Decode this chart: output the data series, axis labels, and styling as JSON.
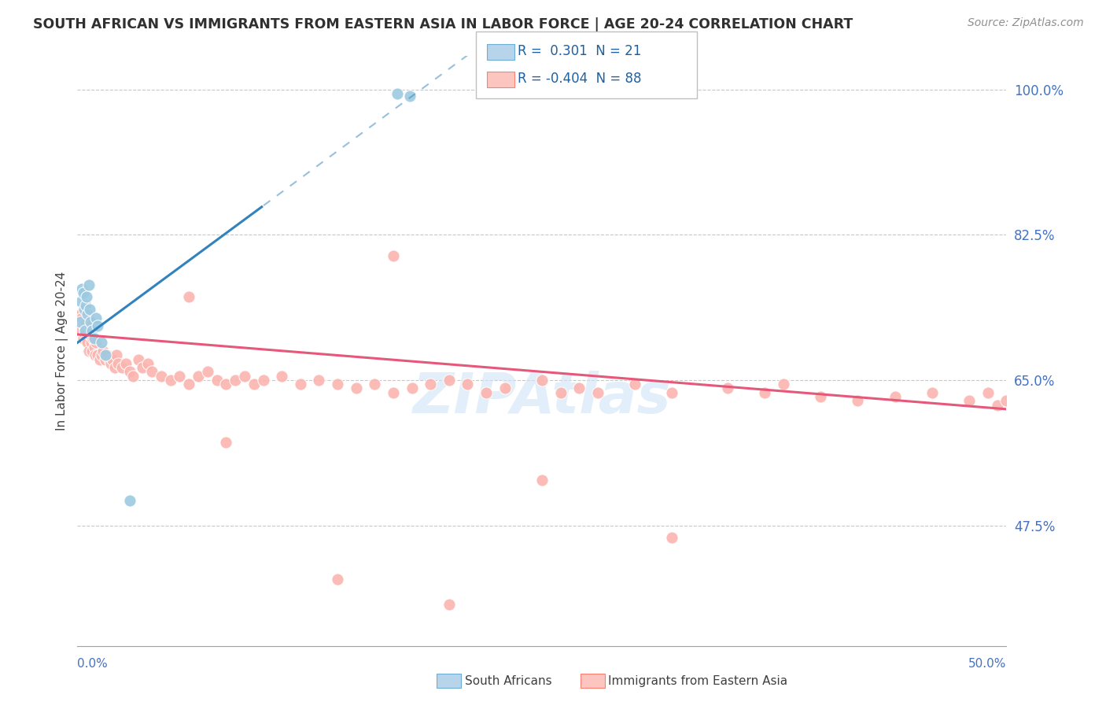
{
  "title": "SOUTH AFRICAN VS IMMIGRANTS FROM EASTERN ASIA IN LABOR FORCE | AGE 20-24 CORRELATION CHART",
  "source": "Source: ZipAtlas.com",
  "ylabel": "In Labor Force | Age 20-24",
  "ytick_vals": [
    47.5,
    65.0,
    82.5,
    100.0
  ],
  "ytick_labels": [
    "47.5%",
    "65.0%",
    "82.5%",
    "100.0%"
  ],
  "xmin": 0.0,
  "xmax": 50.0,
  "ymin": 33.0,
  "ymax": 104.0,
  "r_blue": 0.301,
  "n_blue": 21,
  "r_pink": -0.404,
  "n_pink": 88,
  "blue_scatter_color": "#9ecae1",
  "pink_scatter_color": "#fbb4ae",
  "blue_line_color": "#3182bd",
  "pink_line_color": "#e5587a",
  "legend_blue_fill": "#b8d4ea",
  "legend_pink_fill": "#fcc5c0",
  "blue_line_x0": 0.0,
  "blue_line_y0": 69.5,
  "blue_line_x1": 18.5,
  "blue_line_y1": 100.0,
  "blue_solid_xmax": 10.0,
  "pink_line_x0": 0.0,
  "pink_line_y0": 70.5,
  "pink_line_x1": 50.0,
  "pink_line_y1": 61.5,
  "blue_x": [
    0.15,
    0.2,
    0.25,
    0.3,
    0.35,
    0.4,
    0.45,
    0.5,
    0.55,
    0.6,
    0.65,
    0.7,
    0.8,
    0.9,
    1.0,
    1.1,
    1.3,
    1.5,
    2.8,
    17.2,
    17.9
  ],
  "blue_y": [
    72.0,
    74.5,
    76.0,
    75.5,
    73.5,
    71.0,
    74.0,
    75.0,
    73.0,
    76.5,
    73.5,
    72.0,
    71.0,
    70.0,
    72.5,
    71.5,
    69.5,
    68.0,
    50.5,
    99.5,
    99.2
  ],
  "pink_x": [
    0.1,
    0.15,
    0.2,
    0.25,
    0.3,
    0.35,
    0.4,
    0.45,
    0.5,
    0.55,
    0.6,
    0.65,
    0.7,
    0.75,
    0.8,
    0.85,
    0.9,
    0.95,
    1.0,
    1.1,
    1.2,
    1.3,
    1.4,
    1.5,
    1.6,
    1.7,
    1.8,
    1.9,
    2.0,
    2.1,
    2.2,
    2.4,
    2.6,
    2.8,
    3.0,
    3.3,
    3.5,
    3.8,
    4.0,
    4.5,
    5.0,
    5.5,
    6.0,
    6.5,
    7.0,
    7.5,
    8.0,
    8.5,
    9.0,
    9.5,
    10.0,
    11.0,
    12.0,
    13.0,
    14.0,
    15.0,
    16.0,
    17.0,
    18.0,
    19.0,
    20.0,
    21.0,
    22.0,
    23.0,
    25.0,
    26.0,
    27.0,
    28.0,
    30.0,
    32.0,
    35.0,
    37.0,
    38.0,
    40.0,
    42.0,
    44.0,
    46.0,
    48.0,
    49.0,
    49.5,
    50.0,
    32.0,
    25.0,
    17.0,
    6.0,
    14.0,
    8.0,
    20.0
  ],
  "pink_y": [
    72.5,
    71.0,
    73.0,
    72.5,
    70.0,
    71.5,
    70.5,
    72.0,
    70.0,
    69.5,
    68.5,
    70.5,
    71.0,
    69.5,
    68.5,
    70.0,
    69.0,
    68.0,
    69.5,
    68.0,
    67.5,
    68.0,
    68.5,
    67.5,
    68.0,
    67.5,
    67.0,
    67.5,
    66.5,
    68.0,
    67.0,
    66.5,
    67.0,
    66.0,
    65.5,
    67.5,
    66.5,
    67.0,
    66.0,
    65.5,
    65.0,
    65.5,
    64.5,
    65.5,
    66.0,
    65.0,
    64.5,
    65.0,
    65.5,
    64.5,
    65.0,
    65.5,
    64.5,
    65.0,
    64.5,
    64.0,
    64.5,
    63.5,
    64.0,
    64.5,
    65.0,
    64.5,
    63.5,
    64.0,
    65.0,
    63.5,
    64.0,
    63.5,
    64.5,
    63.5,
    64.0,
    63.5,
    64.5,
    63.0,
    62.5,
    63.0,
    63.5,
    62.5,
    63.5,
    62.0,
    62.5,
    46.0,
    53.0,
    80.0,
    75.0,
    41.0,
    57.5,
    38.0
  ]
}
